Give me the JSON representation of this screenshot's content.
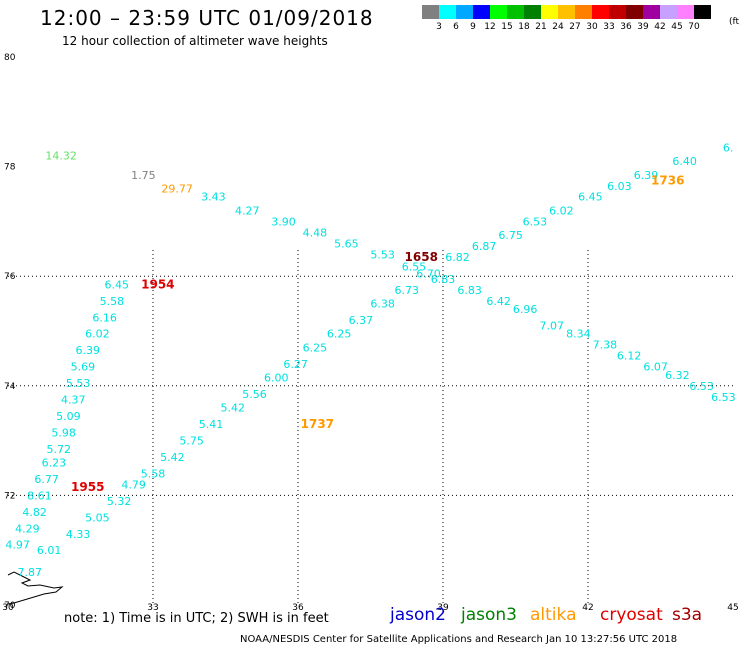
{
  "title": "12:00 – 23:59 UTC 01/09/2018",
  "subtitle": "12 hour collection of altimeter wave heights",
  "legend": {
    "unit": "(ft)",
    "colors": [
      "#808080",
      "#00ffff",
      "#00a8ff",
      "#0000ff",
      "#00ff00",
      "#00c000",
      "#008000",
      "#ffff00",
      "#ffc000",
      "#ff8000",
      "#ff0000",
      "#c00000",
      "#800000",
      "#a000a0",
      "#c8a0ff",
      "#ff80ff",
      "#000000"
    ],
    "labels": [
      "3",
      "6",
      "9",
      "12",
      "15",
      "18",
      "21",
      "24",
      "27",
      "30",
      "33",
      "36",
      "39",
      "42",
      "45",
      "70"
    ]
  },
  "note": "note:  1) Time is in UTC;  2) SWH is in feet",
  "missions": [
    {
      "name": "jason2",
      "color": "#0000cc"
    },
    {
      "name": "jason3",
      "color": "#008000"
    },
    {
      "name": "altika",
      "color": "#ff9900"
    },
    {
      "name": "cryosat",
      "color": "#e00000"
    },
    {
      "name": "s3a",
      "color": "#a00000"
    }
  ],
  "credit": "NOAA/NESDIS Center for Satellite Applications and Research     Jan 10 13:27:56 UTC 2018",
  "chart_data": {
    "type": "scatter",
    "xlim": [
      30,
      45
    ],
    "ylim": [
      70,
      80
    ],
    "x_ticks": [
      30,
      33,
      36,
      39,
      42,
      45
    ],
    "y_ticks": [
      70,
      72,
      74,
      76,
      78,
      80
    ],
    "grid": true,
    "points": [
      {
        "x": 31.1,
        "y": 78.2,
        "label": "14.32",
        "color": "#66e066"
      },
      {
        "x": 32.8,
        "y": 77.85,
        "label": "1.75",
        "color": "#808080"
      },
      {
        "x": 33.5,
        "y": 77.6,
        "label": "29.77",
        "color": "#ff9900"
      },
      {
        "x": 34.25,
        "y": 77.45,
        "label": "3.43",
        "color": "#00e0e0"
      },
      {
        "x": 34.95,
        "y": 77.2,
        "label": "4.27",
        "color": "#00e0e0"
      },
      {
        "x": 35.7,
        "y": 77.0,
        "label": "3.90",
        "color": "#00e0e0"
      },
      {
        "x": 36.35,
        "y": 76.8,
        "label": "4.48",
        "color": "#00e0e0"
      },
      {
        "x": 37.0,
        "y": 76.6,
        "label": "5.65",
        "color": "#00e0e0"
      },
      {
        "x": 37.75,
        "y": 76.4,
        "label": "5.53",
        "color": "#00e0e0"
      },
      {
        "x": 38.55,
        "y": 76.35,
        "label": "1658",
        "color": "#800000",
        "bold": true
      },
      {
        "x": 38.4,
        "y": 76.18,
        "label": "6.55",
        "color": "#00e0e0"
      },
      {
        "x": 39.0,
        "y": 75.95,
        "label": "6.83",
        "color": "#00e0e0"
      },
      {
        "x": 39.55,
        "y": 75.75,
        "label": "6.83",
        "color": "#00e0e0"
      },
      {
        "x": 40.15,
        "y": 75.55,
        "label": "6.42",
        "color": "#00e0e0"
      },
      {
        "x": 40.7,
        "y": 75.4,
        "label": "6.96",
        "color": "#00e0e0"
      },
      {
        "x": 41.25,
        "y": 75.1,
        "label": "7.07",
        "color": "#00e0e0"
      },
      {
        "x": 41.8,
        "y": 74.95,
        "label": "8.34",
        "color": "#00e0e0"
      },
      {
        "x": 42.35,
        "y": 74.75,
        "label": "7.38",
        "color": "#00e0e0"
      },
      {
        "x": 42.85,
        "y": 74.55,
        "label": "6.12",
        "color": "#00e0e0"
      },
      {
        "x": 43.4,
        "y": 74.35,
        "label": "6.07",
        "color": "#00e0e0"
      },
      {
        "x": 43.85,
        "y": 74.2,
        "label": "6.32",
        "color": "#00e0e0"
      },
      {
        "x": 44.35,
        "y": 74.0,
        "label": "6.53",
        "color": "#00e0e0"
      },
      {
        "x": 44.8,
        "y": 73.8,
        "label": "6.53",
        "color": "#00e0e0"
      },
      {
        "x": 30.45,
        "y": 70.6,
        "label": "7.87",
        "color": "#00e0e0"
      },
      {
        "x": 30.85,
        "y": 71.0,
        "label": "6.01",
        "color": "#00e0e0"
      },
      {
        "x": 31.45,
        "y": 71.3,
        "label": "4.33",
        "color": "#00e0e0"
      },
      {
        "x": 31.85,
        "y": 71.6,
        "label": "5.05",
        "color": "#00e0e0"
      },
      {
        "x": 32.3,
        "y": 71.9,
        "label": "5.32",
        "color": "#00e0e0"
      },
      {
        "x": 32.6,
        "y": 72.2,
        "label": "4.79",
        "color": "#00e0e0"
      },
      {
        "x": 33.0,
        "y": 72.4,
        "label": "5.58",
        "color": "#00e0e0"
      },
      {
        "x": 33.4,
        "y": 72.7,
        "label": "5.42",
        "color": "#00e0e0"
      },
      {
        "x": 33.8,
        "y": 73.0,
        "label": "5.75",
        "color": "#00e0e0"
      },
      {
        "x": 34.2,
        "y": 73.3,
        "label": "5.41",
        "color": "#00e0e0"
      },
      {
        "x": 34.65,
        "y": 73.6,
        "label": "5.42",
        "color": "#00e0e0"
      },
      {
        "x": 35.1,
        "y": 73.85,
        "label": "5.56",
        "color": "#00e0e0"
      },
      {
        "x": 35.55,
        "y": 74.15,
        "label": "6.00",
        "color": "#00e0e0"
      },
      {
        "x": 35.95,
        "y": 74.4,
        "label": "6.27",
        "color": "#00e0e0"
      },
      {
        "x": 36.35,
        "y": 74.7,
        "label": "6.25",
        "color": "#00e0e0"
      },
      {
        "x": 36.85,
        "y": 74.95,
        "label": "6.25",
        "color": "#00e0e0"
      },
      {
        "x": 37.3,
        "y": 75.2,
        "label": "6.37",
        "color": "#00e0e0"
      },
      {
        "x": 37.75,
        "y": 75.5,
        "label": "6.38",
        "color": "#00e0e0"
      },
      {
        "x": 38.25,
        "y": 75.75,
        "label": "6.73",
        "color": "#00e0e0"
      },
      {
        "x": 38.7,
        "y": 76.05,
        "label": "6.70",
        "color": "#00e0e0"
      },
      {
        "x": 39.3,
        "y": 76.35,
        "label": "6.82",
        "color": "#00e0e0"
      },
      {
        "x": 39.85,
        "y": 76.55,
        "label": "6.87",
        "color": "#00e0e0"
      },
      {
        "x": 40.4,
        "y": 76.75,
        "label": "6.75",
        "color": "#00e0e0"
      },
      {
        "x": 40.9,
        "y": 77.0,
        "label": "6.53",
        "color": "#00e0e0"
      },
      {
        "x": 41.45,
        "y": 77.2,
        "label": "6.02",
        "color": "#00e0e0"
      },
      {
        "x": 42.05,
        "y": 77.45,
        "label": "6.45",
        "color": "#00e0e0"
      },
      {
        "x": 42.65,
        "y": 77.65,
        "label": "6.03",
        "color": "#00e0e0"
      },
      {
        "x": 43.2,
        "y": 77.85,
        "label": "6.39",
        "color": "#00e0e0"
      },
      {
        "x": 43.65,
        "y": 77.75,
        "label": "1736",
        "color": "#ff9900",
        "bold": true
      },
      {
        "x": 44.0,
        "y": 78.1,
        "label": "6.40",
        "color": "#00e0e0"
      },
      {
        "x": 44.9,
        "y": 78.35,
        "label": "6.",
        "color": "#00e0e0"
      },
      {
        "x": 36.4,
        "y": 73.3,
        "label": "1737",
        "color": "#ff9900",
        "bold": true
      },
      {
        "x": 30.2,
        "y": 71.1,
        "label": "4.97",
        "color": "#00e0e0"
      },
      {
        "x": 30.4,
        "y": 71.4,
        "label": "4.29",
        "color": "#00e0e0"
      },
      {
        "x": 30.55,
        "y": 71.7,
        "label": "4.82",
        "color": "#00e0e0"
      },
      {
        "x": 30.65,
        "y": 72.0,
        "label": "8.61",
        "color": "#00e0e0"
      },
      {
        "x": 30.8,
        "y": 72.3,
        "label": "6.77",
        "color": "#00e0e0"
      },
      {
        "x": 30.95,
        "y": 72.6,
        "label": "6.23",
        "color": "#00e0e0"
      },
      {
        "x": 31.05,
        "y": 72.85,
        "label": "5.72",
        "color": "#00e0e0"
      },
      {
        "x": 31.15,
        "y": 73.15,
        "label": "5.98",
        "color": "#00e0e0"
      },
      {
        "x": 31.25,
        "y": 73.45,
        "label": "5.09",
        "color": "#00e0e0"
      },
      {
        "x": 31.35,
        "y": 73.75,
        "label": "4.37",
        "color": "#00e0e0"
      },
      {
        "x": 31.45,
        "y": 74.05,
        "label": "5.53",
        "color": "#00e0e0"
      },
      {
        "x": 31.55,
        "y": 74.35,
        "label": "5.69",
        "color": "#00e0e0"
      },
      {
        "x": 31.65,
        "y": 74.65,
        "label": "6.39",
        "color": "#00e0e0"
      },
      {
        "x": 31.85,
        "y": 74.95,
        "label": "6.02",
        "color": "#00e0e0"
      },
      {
        "x": 32.0,
        "y": 75.25,
        "label": "6.16",
        "color": "#00e0e0"
      },
      {
        "x": 32.15,
        "y": 75.55,
        "label": "5.58",
        "color": "#00e0e0"
      },
      {
        "x": 32.25,
        "y": 75.85,
        "label": "6.45",
        "color": "#00e0e0"
      },
      {
        "x": 33.1,
        "y": 75.85,
        "label": "1954",
        "color": "#e00000",
        "bold": true
      },
      {
        "x": 31.65,
        "y": 72.15,
        "label": "1955",
        "color": "#e00000",
        "bold": true
      }
    ]
  }
}
